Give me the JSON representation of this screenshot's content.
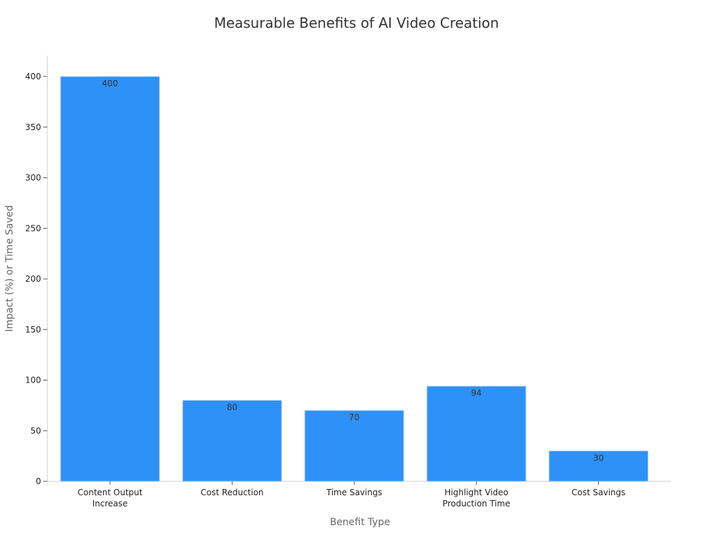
{
  "chart_data": {
    "type": "bar",
    "title": "Measurable Benefits of AI Video Creation",
    "xlabel": "Benefit Type",
    "ylabel": "Impact (%) or Time Saved",
    "categories": [
      [
        "Content Output",
        "Increase"
      ],
      [
        "Cost Reduction"
      ],
      [
        "Time Savings"
      ],
      [
        "Highlight Video",
        "Production Time"
      ],
      [
        "Cost Savings"
      ]
    ],
    "values": [
      400,
      80,
      70,
      94,
      30
    ],
    "data_labels": [
      "400",
      "80",
      "70",
      "94",
      "30"
    ],
    "ylim": [
      0,
      420
    ],
    "yticks": [
      0,
      50,
      100,
      150,
      200,
      250,
      300,
      350,
      400
    ],
    "grid": false,
    "legend": "none",
    "colors": {
      "bar": "#2d91f7",
      "bar_edge": "#9fcbfa",
      "axis": "#cccccc",
      "tick_text": "#222222",
      "label_text": "#666666",
      "title_text": "#333333",
      "data_label_text": "#333333"
    }
  }
}
